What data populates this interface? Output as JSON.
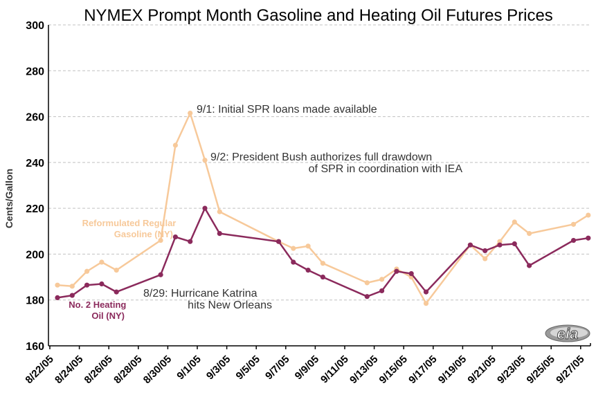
{
  "chart_data": {
    "type": "line",
    "title": "NYMEX Prompt Month Gasoline and Heating Oil Futures Prices",
    "ylabel": "Cents/Gallon",
    "xlabel": "",
    "ylim": [
      160,
      300
    ],
    "yticks": [
      160,
      180,
      200,
      220,
      240,
      260,
      280,
      300
    ],
    "x_tick_labels": [
      "8/22/05",
      "8/24/05",
      "8/26/05",
      "8/28/05",
      "8/30/05",
      "9/1/05",
      "9/3/05",
      "9/5/05",
      "9/7/05",
      "9/9/05",
      "9/11/05",
      "9/13/05",
      "9/15/05",
      "9/17/05",
      "9/19/05",
      "9/21/05",
      "9/23/05",
      "9/25/05",
      "9/27/05"
    ],
    "grid": true,
    "series": [
      {
        "name": "Reformulated Regular Gasoline (NY)",
        "label_lines": [
          "Reformulated Regular",
          "Gasoline (NY)"
        ],
        "color": "#f7c99a",
        "x": [
          "8/22/05",
          "8/23/05",
          "8/24/05",
          "8/25/05",
          "8/26/05",
          "8/29/05",
          "8/30/05",
          "8/31/05",
          "9/1/05",
          "9/2/05",
          "9/6/05",
          "9/7/05",
          "9/8/05",
          "9/9/05",
          "9/12/05",
          "9/13/05",
          "9/14/05",
          "9/15/05",
          "9/16/05",
          "9/19/05",
          "9/20/05",
          "9/21/05",
          "9/22/05",
          "9/23/05",
          "9/26/05",
          "9/27/05"
        ],
        "values": [
          186.5,
          186.0,
          192.5,
          196.5,
          193.0,
          206.0,
          247.5,
          261.5,
          241.0,
          218.5,
          205.5,
          202.5,
          203.5,
          196.0,
          187.5,
          189.0,
          193.5,
          190.0,
          178.5,
          204.0,
          198.0,
          205.5,
          214.0,
          209.0,
          213.0,
          217.0
        ]
      },
      {
        "name": "No. 2 Heating Oil (NY)",
        "label_lines": [
          "No. 2 Heating",
          "Oil (NY)"
        ],
        "color": "#8b2a5c",
        "x": [
          "8/22/05",
          "8/23/05",
          "8/24/05",
          "8/25/05",
          "8/26/05",
          "8/29/05",
          "8/30/05",
          "8/31/05",
          "9/1/05",
          "9/2/05",
          "9/6/05",
          "9/7/05",
          "9/8/05",
          "9/9/05",
          "9/12/05",
          "9/13/05",
          "9/14/05",
          "9/15/05",
          "9/16/05",
          "9/19/05",
          "9/20/05",
          "9/21/05",
          "9/22/05",
          "9/23/05",
          "9/26/05",
          "9/27/05"
        ],
        "values": [
          181.0,
          182.0,
          186.5,
          187.0,
          183.5,
          191.0,
          207.5,
          205.5,
          220.0,
          209.0,
          205.5,
          196.5,
          193.0,
          190.0,
          181.5,
          184.0,
          192.5,
          191.5,
          183.5,
          204.0,
          201.5,
          204.0,
          204.5,
          195.0,
          206.0,
          207.0
        ]
      }
    ],
    "annotations": [
      {
        "text_lines": [
          "9/1: Initial SPR loans made available"
        ],
        "anchor": "9/1/05"
      },
      {
        "text_lines": [
          "9/2: President Bush authorizes full drawdown",
          "of SPR in coordination with IEA"
        ],
        "anchor": "9/2/05"
      },
      {
        "text_lines": [
          "8/29: Hurricane Katrina",
          "hits New Orleans"
        ],
        "anchor": "8/29/05"
      }
    ],
    "logo": {
      "name": "eia-logo",
      "text": "eia"
    }
  }
}
